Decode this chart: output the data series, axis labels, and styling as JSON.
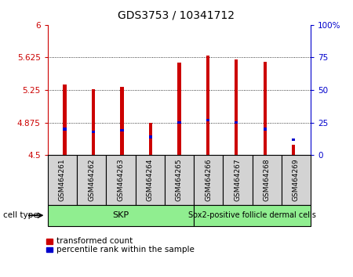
{
  "title": "GDS3753 / 10341712",
  "samples": [
    "GSM464261",
    "GSM464262",
    "GSM464263",
    "GSM464264",
    "GSM464265",
    "GSM464266",
    "GSM464267",
    "GSM464268",
    "GSM464269"
  ],
  "transformed_counts": [
    5.315,
    5.255,
    5.285,
    4.875,
    5.565,
    5.645,
    5.605,
    5.575,
    4.62
  ],
  "percentile_ranks": [
    20,
    18,
    19,
    14,
    25,
    27,
    25,
    20,
    12
  ],
  "y_min": 4.5,
  "y_max": 6.0,
  "y_ticks": [
    4.5,
    4.875,
    5.25,
    5.625,
    6.0
  ],
  "y_tick_labels": [
    "4.5",
    "4.875",
    "5.25",
    "5.625",
    "6"
  ],
  "right_y_ticks": [
    0,
    25,
    50,
    75,
    100
  ],
  "right_y_tick_labels": [
    "0",
    "25",
    "50",
    "75",
    "100%"
  ],
  "skp_count": 5,
  "sox2_count": 4,
  "cell_type_labels": [
    "SKP",
    "Sox2-positive follicle dermal cells"
  ],
  "cell_type_color": "#90EE90",
  "bar_color": "#CC0000",
  "blue_color": "#0000CC",
  "bar_width": 0.12,
  "background_color": "#ffffff",
  "tick_box_color": "#d3d3d3",
  "left_axis_color": "#CC0000",
  "right_axis_color": "#0000CC",
  "legend_items": [
    "transformed count",
    "percentile rank within the sample"
  ]
}
